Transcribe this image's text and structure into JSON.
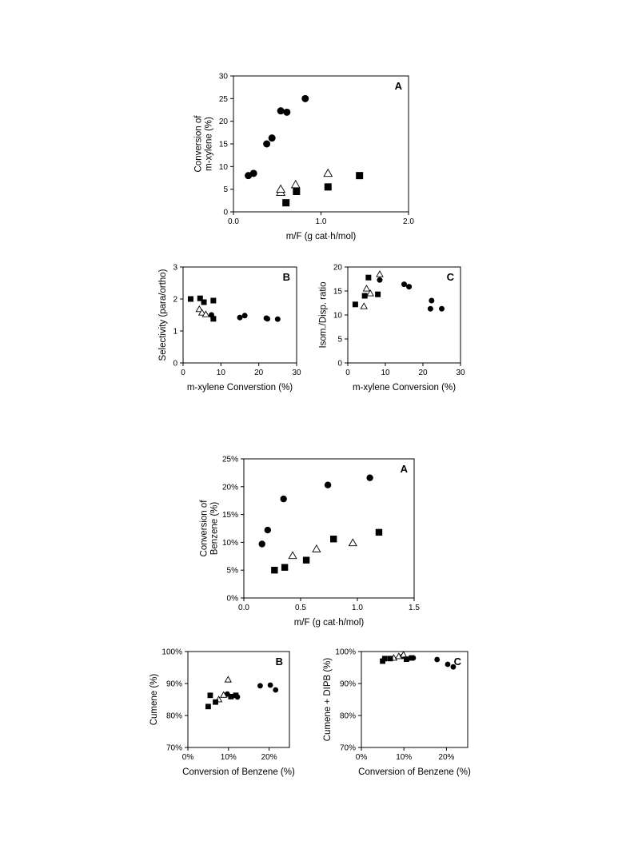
{
  "chart_data": [
    {
      "type": "scatter",
      "panel": "A",
      "xlabel": "m/F (g cat·h/mol)",
      "ylabel_lines": [
        "Conversion of",
        "m-xylene (%)"
      ],
      "xlim": [
        0,
        2
      ],
      "ylim": [
        0,
        30
      ],
      "xticks": [
        0,
        1,
        2
      ],
      "xtick_labels": [
        "0.0",
        "1.0",
        "2.0"
      ],
      "yticks": [
        0,
        5,
        10,
        15,
        20,
        25,
        30
      ],
      "ytick_labels": [
        "0",
        "5",
        "10",
        "15",
        "20",
        "25",
        "30"
      ],
      "series": [
        {
          "marker": "circle",
          "x": [
            0.17,
            0.23,
            0.38,
            0.44,
            0.54,
            0.61,
            0.82
          ],
          "y": [
            8.0,
            8.5,
            15.0,
            16.3,
            22.3,
            22.0,
            25.0
          ]
        },
        {
          "marker": "triangle",
          "x": [
            0.54,
            0.54,
            0.71,
            1.08
          ],
          "y": [
            4.3,
            5.0,
            6.0,
            8.5
          ]
        },
        {
          "marker": "square",
          "x": [
            0.6,
            0.72,
            1.08,
            1.44
          ],
          "y": [
            2.0,
            4.5,
            5.5,
            8.0
          ]
        }
      ]
    },
    {
      "type": "scatter",
      "panel": "B",
      "xlabel": "m-xylene Converstion (%)",
      "ylabel_lines": [
        "Selectivity (para/ortho)"
      ],
      "xlim": [
        0,
        30
      ],
      "ylim": [
        0,
        3
      ],
      "xticks": [
        0,
        10,
        20,
        30
      ],
      "xtick_labels": [
        "0",
        "10",
        "20",
        "30"
      ],
      "yticks": [
        0,
        1,
        2,
        3
      ],
      "ytick_labels": [
        "0",
        "1",
        "2",
        "3"
      ],
      "series": [
        {
          "marker": "circle",
          "x": [
            7.5,
            15.0,
            16.3,
            22.0,
            22.3,
            25.0
          ],
          "y": [
            1.5,
            1.42,
            1.48,
            1.4,
            1.38,
            1.37
          ]
        },
        {
          "marker": "triangle",
          "x": [
            4.3,
            5.0,
            6.0
          ],
          "y": [
            1.68,
            1.57,
            1.52
          ]
        },
        {
          "marker": "square",
          "x": [
            2.0,
            4.5,
            5.5,
            8.0,
            8.0
          ],
          "y": [
            2.0,
            2.02,
            1.9,
            1.95,
            1.38
          ]
        }
      ]
    },
    {
      "type": "scatter",
      "panel": "C",
      "xlabel": "m-xylene Conversion (%)",
      "ylabel_lines": [
        "Isom./Disp. ratio"
      ],
      "xlim": [
        0,
        30
      ],
      "ylim": [
        0,
        20
      ],
      "xticks": [
        0,
        10,
        20,
        30
      ],
      "xtick_labels": [
        "0",
        "10",
        "20",
        "30"
      ],
      "yticks": [
        0,
        5,
        10,
        15,
        20
      ],
      "ytick_labels": [
        "0",
        "5",
        "10",
        "15",
        "20"
      ],
      "series": [
        {
          "marker": "circle",
          "x": [
            8.5,
            15.0,
            16.3,
            22.0,
            22.3,
            25.0
          ],
          "y": [
            17.3,
            16.4,
            15.9,
            11.3,
            13.0,
            11.3
          ]
        },
        {
          "marker": "triangle",
          "x": [
            4.3,
            5.0,
            6.0,
            8.5
          ],
          "y": [
            11.8,
            15.5,
            14.5,
            18.5
          ]
        },
        {
          "marker": "square",
          "x": [
            2.0,
            4.5,
            5.5,
            8.0
          ],
          "y": [
            12.2,
            14.0,
            17.8,
            14.3
          ]
        }
      ]
    },
    {
      "type": "scatter",
      "panel": "A",
      "xlabel": "m/F (g cat·h/mol)",
      "ylabel_lines": [
        "Conversion of",
        "Benzene (%)"
      ],
      "xlim": [
        0,
        1.5
      ],
      "ylim": [
        0,
        25
      ],
      "xticks": [
        0,
        0.5,
        1.0,
        1.5
      ],
      "xtick_labels": [
        "0.0",
        "0.5",
        "1.0",
        "1.5"
      ],
      "yticks": [
        0,
        5,
        10,
        15,
        20,
        25
      ],
      "ytick_labels": [
        "0%",
        "5%",
        "10%",
        "15%",
        "20%",
        "25%"
      ],
      "series": [
        {
          "marker": "circle",
          "x": [
            0.16,
            0.21,
            0.35,
            0.74,
            1.11
          ],
          "y": [
            9.7,
            12.2,
            17.8,
            20.3,
            21.6
          ]
        },
        {
          "marker": "triangle",
          "x": [
            0.43,
            0.64,
            0.96
          ],
          "y": [
            7.6,
            8.8,
            9.9
          ]
        },
        {
          "marker": "square",
          "x": [
            0.27,
            0.36,
            0.55,
            0.79,
            1.19
          ],
          "y": [
            5.0,
            5.5,
            6.8,
            10.6,
            11.8
          ]
        }
      ]
    },
    {
      "type": "scatter",
      "panel": "B",
      "xlabel": "Conversion of Benzene (%)",
      "ylabel_lines": [
        "Cumene (%)"
      ],
      "xlim": [
        0,
        25
      ],
      "ylim": [
        70,
        100
      ],
      "xticks": [
        0,
        10,
        20
      ],
      "xtick_labels": [
        "0%",
        "10%",
        "20%"
      ],
      "yticks": [
        70,
        80,
        90,
        100
      ],
      "ytick_labels": [
        "70%",
        "80%",
        "90%",
        "100%"
      ],
      "series": [
        {
          "marker": "circle",
          "x": [
            9.7,
            12.2,
            17.8,
            20.3,
            21.6
          ],
          "y": [
            86.7,
            85.8,
            89.3,
            89.5,
            88.0
          ]
        },
        {
          "marker": "triangle",
          "x": [
            7.6,
            8.8,
            9.9
          ],
          "y": [
            85.0,
            86.4,
            91.2
          ]
        },
        {
          "marker": "square",
          "x": [
            5.0,
            5.5,
            6.8,
            10.6,
            11.8
          ],
          "y": [
            82.8,
            86.3,
            84.2,
            85.9,
            86.3
          ]
        }
      ]
    },
    {
      "type": "scatter",
      "panel": "C",
      "xlabel": "Conversion of Benzene (%)",
      "ylabel_lines": [
        "Cumene + DIPB (%)"
      ],
      "xlim": [
        0,
        25
      ],
      "ylim": [
        70,
        100
      ],
      "xticks": [
        0,
        10,
        20
      ],
      "xtick_labels": [
        "0%",
        "10%",
        "20%"
      ],
      "yticks": [
        70,
        80,
        90,
        100
      ],
      "ytick_labels": [
        "70%",
        "80%",
        "90%",
        "100%"
      ],
      "series": [
        {
          "marker": "circle",
          "x": [
            9.7,
            12.2,
            17.8,
            20.3,
            21.6
          ],
          "y": [
            98.5,
            98.0,
            97.5,
            96.0,
            95.2
          ]
        },
        {
          "marker": "triangle",
          "x": [
            7.6,
            8.8,
            9.9
          ],
          "y": [
            98.0,
            98.5,
            99.0
          ]
        },
        {
          "marker": "square",
          "x": [
            5.0,
            5.5,
            6.8,
            10.6,
            11.8
          ],
          "y": [
            97.0,
            97.8,
            97.8,
            97.6,
            98.0
          ]
        }
      ]
    }
  ]
}
